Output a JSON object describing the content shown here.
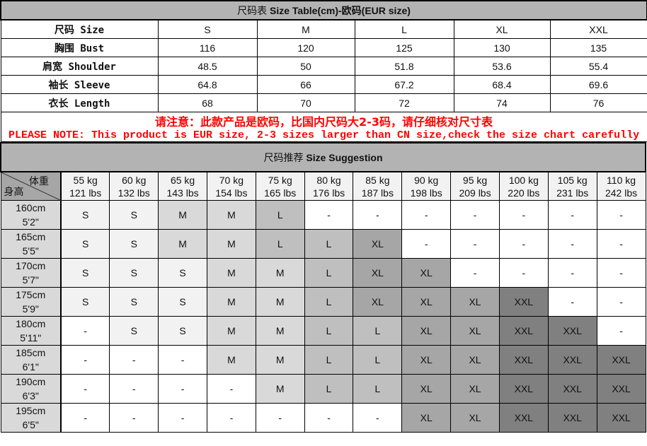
{
  "size_table": {
    "title_cn": "尺码表",
    "title_en": "Size Table(cm)-欧码(EUR size)",
    "header": {
      "label": "尺码 Size",
      "sizes": [
        "S",
        "M",
        "L",
        "XL",
        "XXL"
      ]
    },
    "rows": [
      {
        "label": "胸围 Bust",
        "values": [
          "116",
          "120",
          "125",
          "130",
          "135"
        ]
      },
      {
        "label": "肩宽 Shoulder",
        "values": [
          "48.5",
          "50",
          "51.8",
          "53.6",
          "55.4"
        ]
      },
      {
        "label": "袖长 Sleeve",
        "values": [
          "64.8",
          "66",
          "67.2",
          "68.4",
          "69.6"
        ]
      },
      {
        "label": "衣长 Length",
        "values": [
          "68",
          "70",
          "72",
          "74",
          "76"
        ]
      }
    ]
  },
  "note": {
    "cn": "请注意：此款产品是欧码，比国内尺码大2-3码，请仔细核对尺寸表",
    "en": "PLEASE NOTE: This product is EUR size, 2-3 sizes larger than CN size,check the size chart carefully",
    "color": "#ff0000"
  },
  "suggestion": {
    "title_cn": "尺码推荐",
    "title_en": "Size Suggestion",
    "corner_weight": "体重",
    "corner_height": "身高",
    "weights": [
      [
        "55 kg",
        "121 lbs"
      ],
      [
        "60 kg",
        "132 lbs"
      ],
      [
        "65 kg",
        "143 lbs"
      ],
      [
        "70 kg",
        "154 lbs"
      ],
      [
        "75 kg",
        "165 lbs"
      ],
      [
        "80 kg",
        "176 lbs"
      ],
      [
        "85 kg",
        "187 lbs"
      ],
      [
        "90 kg",
        "198 lbs"
      ],
      [
        "95 kg",
        "209 lbs"
      ],
      [
        "100 kg",
        "220 lbs"
      ],
      [
        "105 kg",
        "231 lbs"
      ],
      [
        "110 kg",
        "242 lbs"
      ]
    ],
    "rows": [
      {
        "cm": "160cm",
        "ft": "5'2\"",
        "values": [
          "S",
          "S",
          "M",
          "M",
          "L",
          "-",
          "-",
          "-",
          "-",
          "-",
          "-",
          "-"
        ]
      },
      {
        "cm": "165cm",
        "ft": "5'5\"",
        "values": [
          "S",
          "S",
          "M",
          "M",
          "L",
          "L",
          "XL",
          "-",
          "-",
          "-",
          "-",
          "-"
        ]
      },
      {
        "cm": "170cm",
        "ft": "5'7\"",
        "values": [
          "S",
          "S",
          "S",
          "M",
          "M",
          "L",
          "XL",
          "XL",
          "-",
          "-",
          "-",
          "-"
        ]
      },
      {
        "cm": "175cm",
        "ft": "5'9\"",
        "values": [
          "S",
          "S",
          "S",
          "M",
          "M",
          "L",
          "XL",
          "XL",
          "XL",
          "XXL",
          "-",
          "-"
        ]
      },
      {
        "cm": "180cm",
        "ft": "5'11\"",
        "values": [
          "-",
          "S",
          "S",
          "M",
          "M",
          "L",
          "L",
          "XL",
          "XL",
          "XXL",
          "XXL",
          "-"
        ]
      },
      {
        "cm": "185cm",
        "ft": "6'1\"",
        "values": [
          "-",
          "-",
          "-",
          "M",
          "M",
          "L",
          "L",
          "XL",
          "XL",
          "XXL",
          "XXL",
          "XXL"
        ]
      },
      {
        "cm": "190cm",
        "ft": "6'3\"",
        "values": [
          "-",
          "-",
          "-",
          "-",
          "M",
          "L",
          "L",
          "XL",
          "XL",
          "XXL",
          "XXL",
          "XXL"
        ]
      },
      {
        "cm": "195cm",
        "ft": "6'5\"",
        "values": [
          "-",
          "-",
          "-",
          "-",
          "-",
          "-",
          "-",
          "XL",
          "XL",
          "XXL",
          "XXL",
          "XXL"
        ]
      }
    ],
    "size_colors": {
      "S": "#f2f2f2",
      "M": "#d9d9d9",
      "L": "#bfbfbf",
      "XL": "#a6a6a6",
      "XXL": "#808080",
      "-": "#ffffff"
    }
  }
}
